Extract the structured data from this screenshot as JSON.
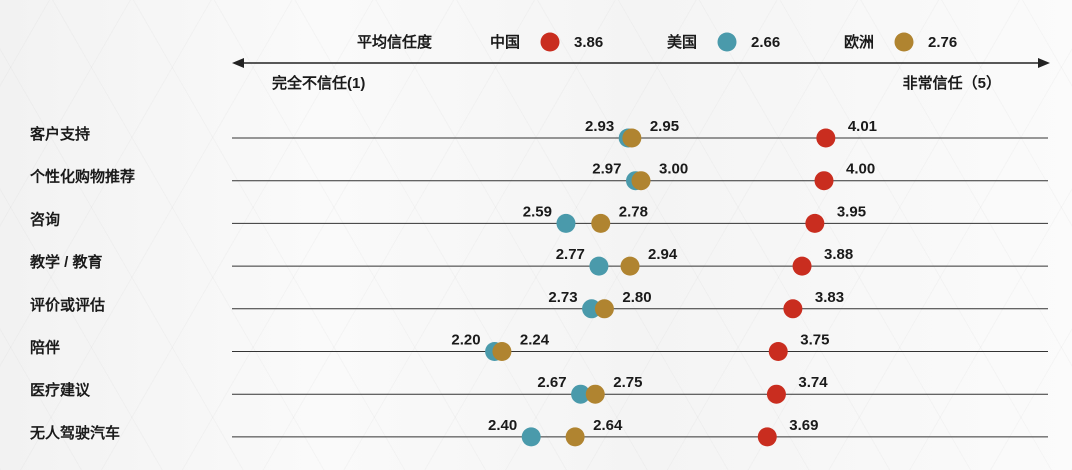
{
  "chart_data": {
    "type": "scatter",
    "title": "",
    "legend": {
      "title": "平均信任度",
      "entries": [
        {
          "name": "中国",
          "color": "#c92d1f",
          "value_label": "3.86"
        },
        {
          "name": "美国",
          "color": "#4a9aab",
          "value_label": "2.66"
        },
        {
          "name": "欧洲",
          "color": "#b08430",
          "value_label": "2.76"
        }
      ]
    },
    "axis": {
      "left_label": "完全不信任(1)",
      "right_label": "非常信任（5）",
      "range": [
        1,
        5
      ]
    },
    "categories": [
      "客户支持",
      "个性化购物推荐",
      "咨询",
      "教学 / 教育",
      "评价或评估",
      "陪伴",
      "医疗建议",
      "无人驾驶汽车"
    ],
    "series": [
      {
        "name": "中国",
        "color": "#c92d1f",
        "values": [
          4.01,
          4.0,
          3.95,
          3.88,
          3.83,
          3.75,
          3.74,
          3.69
        ],
        "labels": [
          "4.01",
          "4.00",
          "3.95",
          "3.88",
          "3.83",
          "3.75",
          "3.74",
          "3.69"
        ]
      },
      {
        "name": "美国",
        "color": "#4a9aab",
        "values": [
          2.93,
          2.97,
          2.59,
          2.77,
          2.73,
          2.2,
          2.67,
          2.4
        ],
        "labels": [
          "2.93",
          "2.97",
          "2.59",
          "2.77",
          "2.73",
          "2.20",
          "2.67",
          "2.40"
        ]
      },
      {
        "name": "欧洲",
        "color": "#b08430",
        "values": [
          2.95,
          3.0,
          2.78,
          2.94,
          2.8,
          2.24,
          2.75,
          2.64
        ],
        "labels": [
          "2.95",
          "3.00",
          "2.78",
          "2.94",
          "2.80",
          "2.24",
          "2.75",
          "2.64"
        ]
      }
    ]
  }
}
